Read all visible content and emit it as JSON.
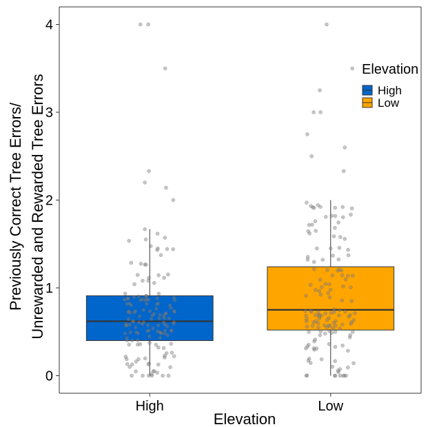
{
  "chart_data": {
    "type": "boxplot",
    "xlabel": "Elevation",
    "ylabel_lines": [
      "Previously Correct Tree Errors/",
      "Unrewarded and Rewarded Tree Errors"
    ],
    "ylim": [
      -0.2,
      4.2
    ],
    "yticks": [
      0,
      1,
      2,
      3,
      4
    ],
    "ytick_labels": [
      "0",
      "1",
      "2",
      "3",
      "4"
    ],
    "categories": [
      "High",
      "Low"
    ],
    "grid": false,
    "legend": {
      "title": "Elevation",
      "position": "right",
      "items": [
        "High",
        "Low"
      ]
    },
    "colors": {
      "High": "#0066cc",
      "Low": "#ffa500",
      "points": "#7f7f7f",
      "outline": "#333333"
    },
    "boxes": [
      {
        "name": "High",
        "q1": 0.4,
        "median": 0.62,
        "q3": 0.91,
        "whisker_low": 0.0,
        "whisker_high": 1.67,
        "outliers": [
          4.0,
          4.0,
          3.5,
          2.33,
          2.2,
          2.14,
          2.0
        ]
      },
      {
        "name": "Low",
        "q1": 0.52,
        "median": 0.75,
        "q3": 1.24,
        "whisker_low": 0.0,
        "whisker_high": 2.0,
        "outliers": [
          4.0,
          3.5,
          3.25,
          3.0,
          3.0,
          2.75,
          2.6,
          2.5,
          2.33
        ]
      }
    ]
  }
}
